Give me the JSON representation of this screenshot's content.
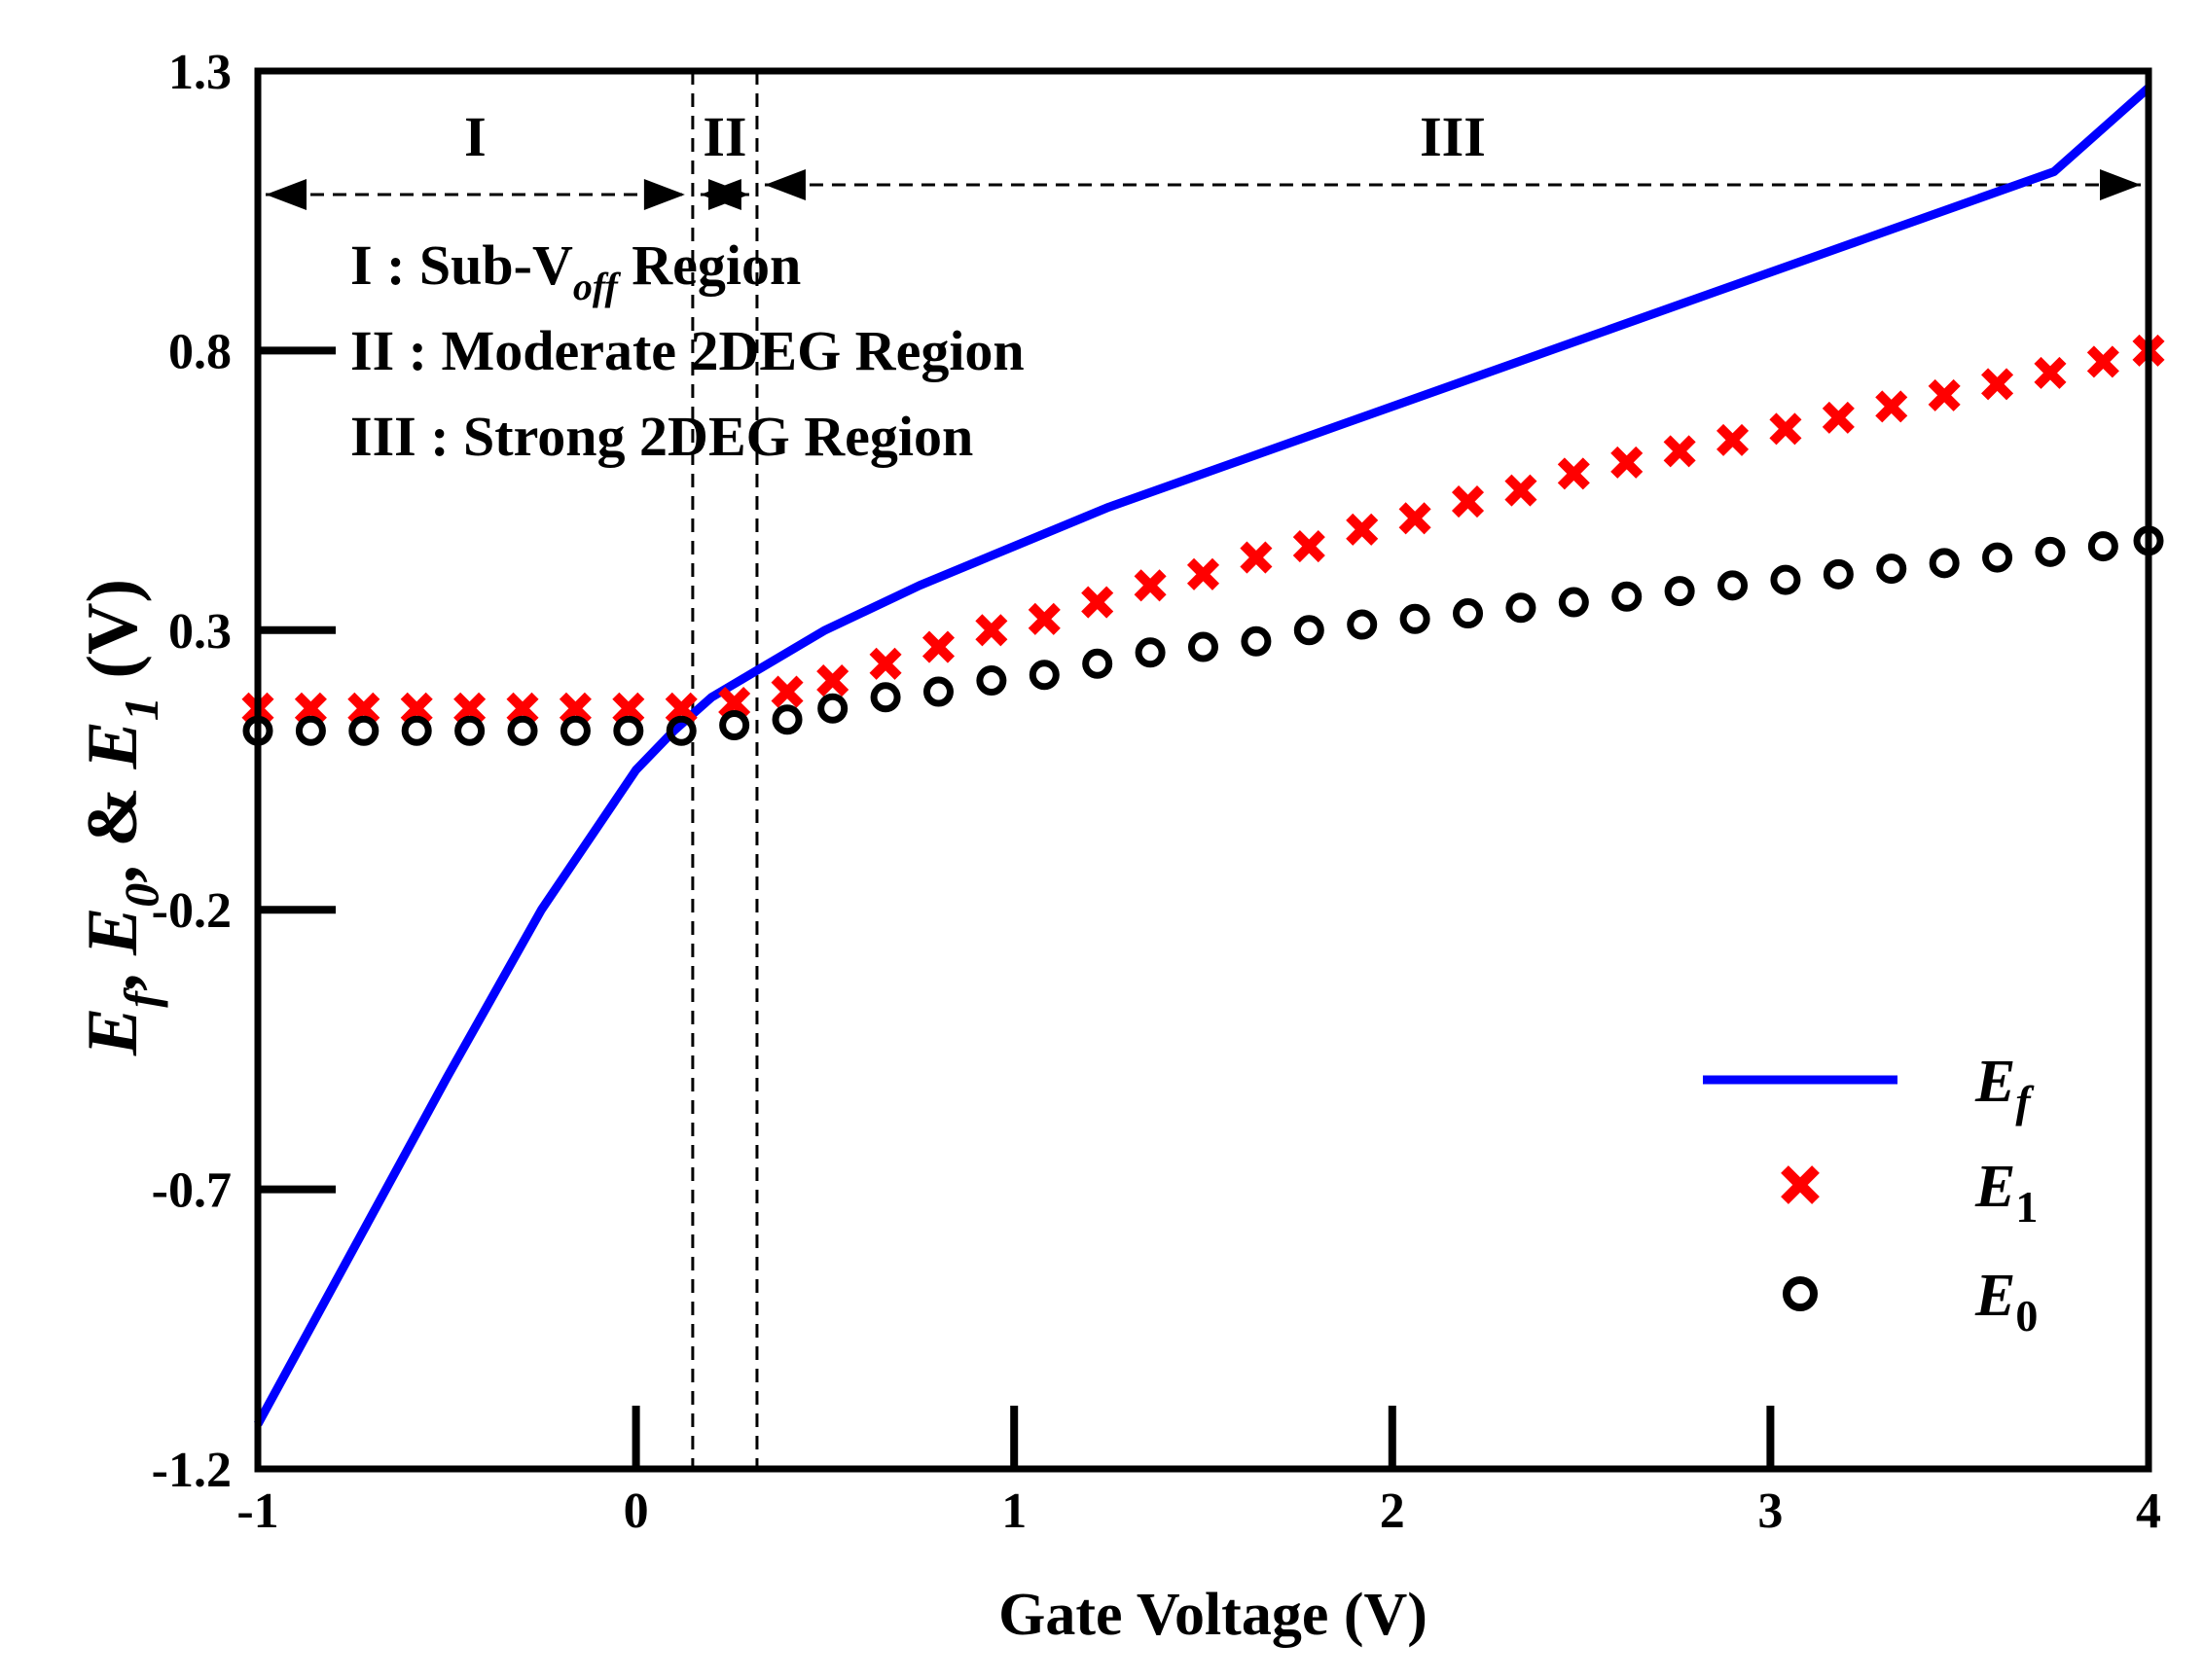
{
  "chart_data": {
    "type": "line",
    "title": "",
    "xlabel": "Gate Voltage (V)",
    "ylabel": {
      "parts": [
        {
          "text": "E",
          "sub": "f",
          "italic": true
        },
        {
          "text": ", ",
          "italic": false
        },
        {
          "text": "E",
          "sub": "0",
          "italic": true
        },
        {
          "text": ", & ",
          "italic": false
        },
        {
          "text": "E",
          "sub": "1",
          "italic": true
        },
        {
          "text": " (V)",
          "italic": false
        }
      ]
    },
    "xlim": [
      -1,
      4
    ],
    "ylim": [
      -1.2,
      1.3
    ],
    "xticks": [
      -1,
      0,
      1,
      2,
      3,
      4
    ],
    "xtick_labels": [
      "-1",
      "0",
      "1",
      "2",
      "3",
      "4"
    ],
    "yticks": [
      -1.2,
      -0.7,
      -0.2,
      0.3,
      0.8,
      1.3
    ],
    "ytick_labels": [
      "-1.2",
      "-0.7",
      "-0.2",
      "0.3",
      "0.8",
      "1.3"
    ],
    "grid": false,
    "legend_position": "bottom-right",
    "series": [
      {
        "name": "Ef",
        "legend_main": "E",
        "legend_sub": "f",
        "style": "line",
        "color": "#0000ff",
        "x": [
          -1,
          -0.75,
          -0.5,
          -0.25,
          0,
          0.1,
          0.15,
          0.2,
          0.25,
          0.3,
          0.4,
          0.5,
          0.75,
          1,
          1.25,
          1.5,
          1.75,
          2,
          2.25,
          2.5,
          2.75,
          3,
          3.25,
          3.5,
          3.75,
          4
        ],
        "y": [
          -1.12,
          -0.81,
          -0.5,
          -0.2,
          0.05,
          0.12,
          0.15,
          0.18,
          0.2,
          0.22,
          0.26,
          0.3,
          0.38,
          0.45,
          0.52,
          0.58,
          0.64,
          0.7,
          0.76,
          0.82,
          0.88,
          0.94,
          1.0,
          1.06,
          1.12,
          1.27
        ]
      },
      {
        "name": "E1",
        "legend_main": "E",
        "legend_sub": "1",
        "style": "x",
        "color": "#ff0000",
        "x": [
          -1,
          -0.86,
          -0.72,
          -0.58,
          -0.44,
          -0.3,
          -0.16,
          -0.02,
          0.12,
          0.26,
          0.4,
          0.52,
          0.66,
          0.8,
          0.94,
          1.08,
          1.22,
          1.36,
          1.5,
          1.64,
          1.78,
          1.92,
          2.06,
          2.2,
          2.34,
          2.48,
          2.62,
          2.76,
          2.9,
          3.04,
          3.18,
          3.32,
          3.46,
          3.6,
          3.74,
          3.88,
          4
        ],
        "y": [
          0.16,
          0.16,
          0.16,
          0.16,
          0.16,
          0.16,
          0.16,
          0.16,
          0.16,
          0.17,
          0.19,
          0.21,
          0.24,
          0.27,
          0.3,
          0.32,
          0.35,
          0.38,
          0.4,
          0.43,
          0.45,
          0.48,
          0.5,
          0.53,
          0.55,
          0.58,
          0.6,
          0.62,
          0.64,
          0.66,
          0.68,
          0.7,
          0.72,
          0.74,
          0.76,
          0.78,
          0.8
        ]
      },
      {
        "name": "E0",
        "legend_main": "E",
        "legend_sub": "0",
        "style": "o",
        "color": "#000000",
        "x": [
          -1,
          -0.86,
          -0.72,
          -0.58,
          -0.44,
          -0.3,
          -0.16,
          -0.02,
          0.12,
          0.26,
          0.4,
          0.52,
          0.66,
          0.8,
          0.94,
          1.08,
          1.22,
          1.36,
          1.5,
          1.64,
          1.78,
          1.92,
          2.06,
          2.2,
          2.34,
          2.48,
          2.62,
          2.76,
          2.9,
          3.04,
          3.18,
          3.32,
          3.46,
          3.6,
          3.74,
          3.88,
          4
        ],
        "y": [
          0.12,
          0.12,
          0.12,
          0.12,
          0.12,
          0.12,
          0.12,
          0.12,
          0.12,
          0.13,
          0.14,
          0.16,
          0.18,
          0.19,
          0.21,
          0.22,
          0.24,
          0.26,
          0.27,
          0.28,
          0.3,
          0.31,
          0.32,
          0.33,
          0.34,
          0.35,
          0.36,
          0.37,
          0.38,
          0.39,
          0.4,
          0.41,
          0.42,
          0.43,
          0.44,
          0.45,
          0.46
        ]
      }
    ],
    "region_boundaries_x": [
      0.15,
      0.32
    ],
    "regions": [
      {
        "label": "I",
        "x_start": -1,
        "x_end": 0.15
      },
      {
        "label": "II",
        "x_start": 0.15,
        "x_end": 0.32
      },
      {
        "label": "III",
        "x_start": 0.32,
        "x_end": 4
      }
    ],
    "annotations": [
      {
        "prefix": "I : Sub-V",
        "sub": "off",
        "suffix": " Region"
      },
      {
        "prefix": "II : Moderate 2DEG Region",
        "sub": "",
        "suffix": ""
      },
      {
        "prefix": "III : Strong  2DEG Region",
        "sub": "",
        "suffix": ""
      }
    ]
  }
}
